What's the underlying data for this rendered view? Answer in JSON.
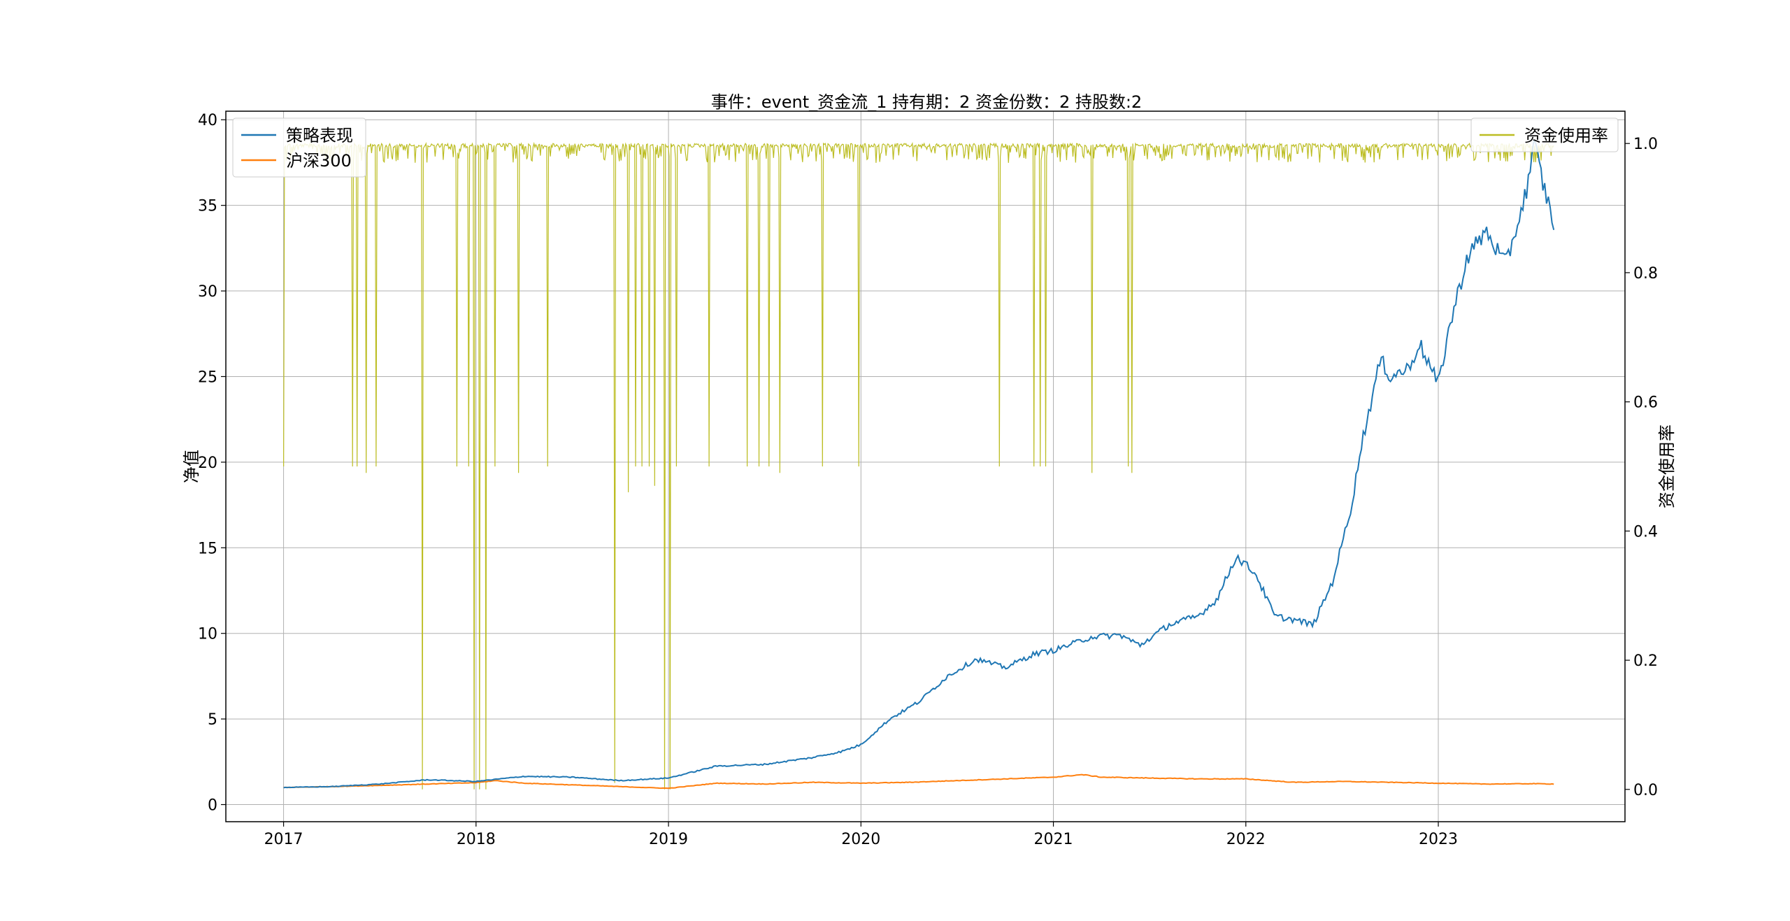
{
  "chart_data": {
    "type": "line",
    "title": "事件：event_资金流_1 持有期：2 资金份数：2 持股数:2",
    "xlabel": "",
    "ylabel": "净值",
    "y2label": "资金使用率",
    "grid": true,
    "x_ticks": [
      "2017",
      "2018",
      "2019",
      "2020",
      "2021",
      "2022",
      "2023"
    ],
    "xlim": [
      2016.7,
      2023.97
    ],
    "ylim": [
      -1,
      40.5
    ],
    "y_ticks": [
      "0",
      "5",
      "10",
      "15",
      "20",
      "25",
      "30",
      "35",
      "40"
    ],
    "y2lim": [
      -0.05,
      1.05
    ],
    "y2_ticks": [
      "0.0",
      "0.2",
      "0.4",
      "0.6",
      "0.8",
      "1.0"
    ],
    "legend_left": {
      "placement": "upper-left",
      "entries": [
        "策略表现",
        "沪深300"
      ]
    },
    "legend_right": {
      "placement": "upper-right",
      "entries": [
        "资金使用率"
      ]
    },
    "colors": {
      "strategy": "#1f77b4",
      "hs300": "#ff7f0e",
      "capital_usage": "#bcbd22",
      "grid": "#b0b0b0"
    },
    "series": [
      {
        "name": "策略表现",
        "axis": "left",
        "x": [
          2017.0,
          2017.25,
          2017.5,
          2017.75,
          2018.0,
          2018.25,
          2018.5,
          2018.75,
          2019.0,
          2019.25,
          2019.5,
          2019.75,
          2019.9,
          2020.0,
          2020.15,
          2020.3,
          2020.45,
          2020.6,
          2020.75,
          2020.9,
          2021.0,
          2021.2,
          2021.35,
          2021.45,
          2021.6,
          2021.75,
          2021.85,
          2021.95,
          2022.05,
          2022.15,
          2022.25,
          2022.35,
          2022.45,
          2022.55,
          2022.6,
          2022.7,
          2022.75,
          2022.85,
          2022.9,
          2023.0,
          2023.05,
          2023.15,
          2023.25,
          2023.35,
          2023.45,
          2023.5,
          2023.55,
          2023.6
        ],
        "values": [
          1.0,
          1.05,
          1.2,
          1.45,
          1.35,
          1.65,
          1.6,
          1.4,
          1.55,
          2.25,
          2.35,
          2.75,
          3.1,
          3.5,
          5.0,
          6.0,
          7.5,
          8.5,
          8.0,
          8.8,
          9.0,
          9.8,
          9.9,
          9.3,
          10.5,
          11.0,
          12.0,
          14.5,
          13.5,
          11.0,
          10.8,
          10.5,
          13.0,
          17.5,
          21.0,
          26.0,
          25.0,
          25.5,
          27.0,
          24.5,
          27.5,
          32.0,
          33.5,
          31.5,
          35.5,
          38.5,
          36.0,
          34.0
        ]
      },
      {
        "name": "沪深300",
        "axis": "left",
        "x": [
          2017.0,
          2017.25,
          2017.5,
          2017.75,
          2018.0,
          2018.1,
          2018.25,
          2018.5,
          2018.75,
          2019.0,
          2019.25,
          2019.5,
          2019.75,
          2020.0,
          2020.25,
          2020.5,
          2020.75,
          2021.0,
          2021.15,
          2021.25,
          2021.5,
          2021.75,
          2022.0,
          2022.25,
          2022.5,
          2022.75,
          2023.0,
          2023.25,
          2023.5,
          2023.6
        ],
        "values": [
          1.0,
          1.05,
          1.12,
          1.2,
          1.28,
          1.4,
          1.25,
          1.15,
          1.05,
          0.95,
          1.25,
          1.2,
          1.3,
          1.25,
          1.3,
          1.4,
          1.5,
          1.6,
          1.75,
          1.6,
          1.55,
          1.5,
          1.5,
          1.3,
          1.35,
          1.3,
          1.25,
          1.2,
          1.22,
          1.2
        ]
      },
      {
        "name": "资金使用率",
        "axis": "right",
        "baseline": 1.0,
        "dips": [
          {
            "x": 2017.0,
            "value": 0.5
          },
          {
            "x": 2017.36,
            "value": 0.5
          },
          {
            "x": 2017.38,
            "value": 0.5
          },
          {
            "x": 2017.43,
            "value": 0.49
          },
          {
            "x": 2017.48,
            "value": 0.5
          },
          {
            "x": 2017.72,
            "value": 0.0
          },
          {
            "x": 2017.9,
            "value": 0.5
          },
          {
            "x": 2017.96,
            "value": 0.5
          },
          {
            "x": 2017.99,
            "value": 0.0
          },
          {
            "x": 2018.02,
            "value": 0.0
          },
          {
            "x": 2018.05,
            "value": 0.0
          },
          {
            "x": 2018.1,
            "value": 0.5
          },
          {
            "x": 2018.22,
            "value": 0.49
          },
          {
            "x": 2018.37,
            "value": 0.5
          },
          {
            "x": 2018.72,
            "value": 0.01
          },
          {
            "x": 2018.79,
            "value": 0.46
          },
          {
            "x": 2018.83,
            "value": 0.5
          },
          {
            "x": 2018.86,
            "value": 0.5
          },
          {
            "x": 2018.9,
            "value": 0.5
          },
          {
            "x": 2018.93,
            "value": 0.47
          },
          {
            "x": 2018.98,
            "value": 0.0
          },
          {
            "x": 2019.01,
            "value": 0.0
          },
          {
            "x": 2019.04,
            "value": 0.5
          },
          {
            "x": 2019.21,
            "value": 0.5
          },
          {
            "x": 2019.41,
            "value": 0.5
          },
          {
            "x": 2019.47,
            "value": 0.5
          },
          {
            "x": 2019.52,
            "value": 0.5
          },
          {
            "x": 2019.58,
            "value": 0.49
          },
          {
            "x": 2019.8,
            "value": 0.5
          },
          {
            "x": 2019.99,
            "value": 0.5
          },
          {
            "x": 2020.72,
            "value": 0.5
          },
          {
            "x": 2020.9,
            "value": 0.5
          },
          {
            "x": 2020.93,
            "value": 0.5
          },
          {
            "x": 2020.96,
            "value": 0.5
          },
          {
            "x": 2021.2,
            "value": 0.49
          },
          {
            "x": 2021.39,
            "value": 0.5
          },
          {
            "x": 2021.41,
            "value": 0.49
          }
        ]
      }
    ]
  }
}
